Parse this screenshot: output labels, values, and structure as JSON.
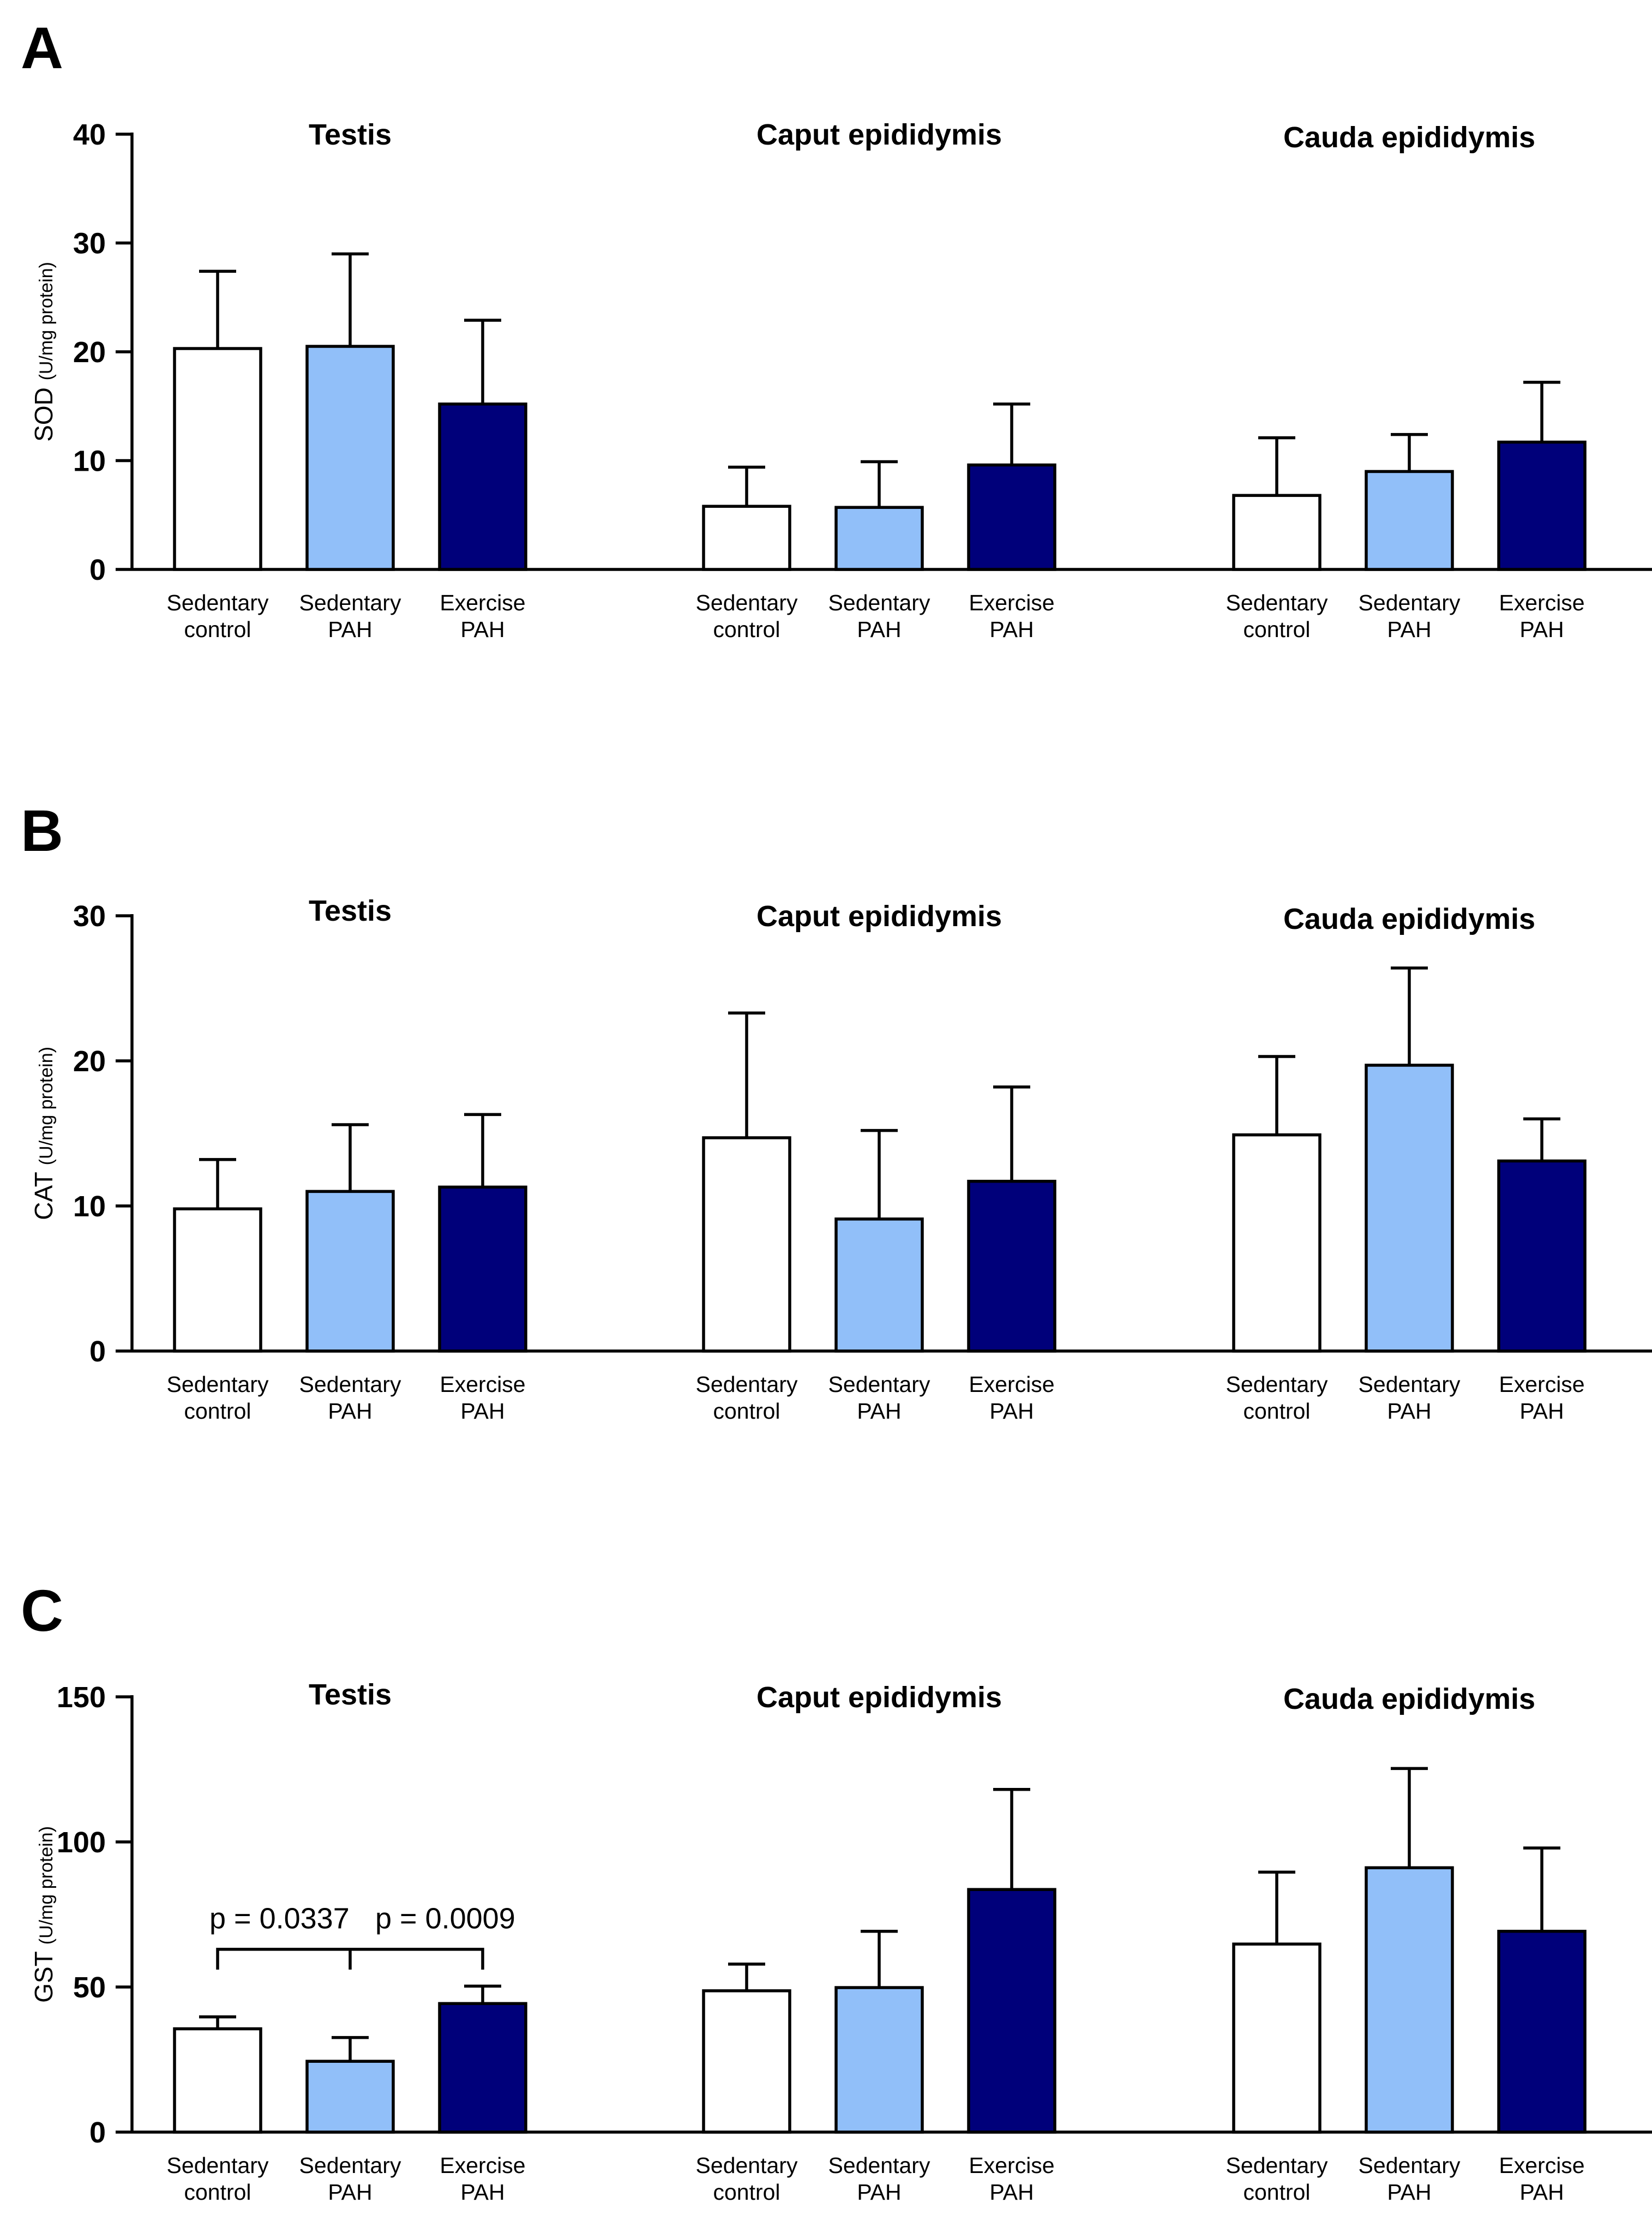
{
  "colors": {
    "sedentary_control": "#ffffff",
    "sedentary_pah": "#91bff9",
    "exercise_pah": "#00007a",
    "stroke": "#000000"
  },
  "chart_data": [
    {
      "panel": "A",
      "type": "bar",
      "ylabel_main": "SOD",
      "ylabel_unit": "(U/mg protein)",
      "ylim": [
        0,
        40
      ],
      "yticks": [
        0,
        10,
        20,
        30,
        40
      ],
      "categories": [
        [
          "Sedentary",
          "control"
        ],
        [
          "Sedentary",
          "PAH"
        ],
        [
          "Exercise",
          "PAH"
        ]
      ],
      "groups": [
        {
          "title": "Testis",
          "values": [
            20.3,
            20.5,
            15.2
          ],
          "errors": [
            7.1,
            8.5,
            7.7
          ]
        },
        {
          "title": "Caput epididymis",
          "values": [
            5.8,
            5.7,
            9.6
          ],
          "errors": [
            3.6,
            4.2,
            5.6
          ]
        },
        {
          "title": "Cauda epididymis",
          "values": [
            6.8,
            9.0,
            11.7
          ],
          "errors": [
            5.3,
            3.4,
            5.5
          ]
        }
      ]
    },
    {
      "panel": "B",
      "type": "bar",
      "ylabel_main": "CAT",
      "ylabel_unit": "(U/mg protein)",
      "ylim": [
        0,
        30
      ],
      "yticks": [
        0,
        10,
        20,
        30
      ],
      "categories": [
        [
          "Sedentary",
          "control"
        ],
        [
          "Sedentary",
          "PAH"
        ],
        [
          "Exercise",
          "PAH"
        ]
      ],
      "groups": [
        {
          "title": "Testis",
          "values": [
            9.8,
            11.0,
            11.3
          ],
          "errors": [
            3.4,
            4.6,
            5.0
          ]
        },
        {
          "title": "Caput epididymis",
          "values": [
            14.7,
            9.1,
            11.7
          ],
          "errors": [
            8.6,
            6.1,
            6.5
          ]
        },
        {
          "title": "Cauda epididymis",
          "values": [
            14.9,
            19.7,
            13.1
          ],
          "errors": [
            5.4,
            6.7,
            2.9
          ]
        }
      ]
    },
    {
      "panel": "C",
      "type": "bar",
      "ylabel_main": "GST",
      "ylabel_unit": "(U/mg protein)",
      "ylim": [
        0,
        150
      ],
      "yticks": [
        0,
        50,
        100,
        150
      ],
      "categories": [
        [
          "Sedentary",
          "control"
        ],
        [
          "Sedentary",
          "PAH"
        ],
        [
          "Exercise",
          "PAH"
        ]
      ],
      "groups": [
        {
          "title": "Testis",
          "values": [
            35.6,
            24.4,
            44.3
          ],
          "errors": [
            4.1,
            8.2,
            6.0
          ]
        },
        {
          "title": "Caput epididymis",
          "values": [
            48.7,
            49.8,
            83.6
          ],
          "errors": [
            9.2,
            19.4,
            34.5
          ]
        },
        {
          "title": "Cauda epididymis",
          "values": [
            64.8,
            91.1,
            69.2
          ],
          "errors": [
            24.8,
            34.2,
            28.7
          ]
        }
      ],
      "annotation": {
        "group": 0,
        "from_bar": 0,
        "to_bar": 2,
        "mid_bar": 1,
        "text_left": "p = 0.0337",
        "text_right": "p = 0.0009"
      }
    }
  ]
}
